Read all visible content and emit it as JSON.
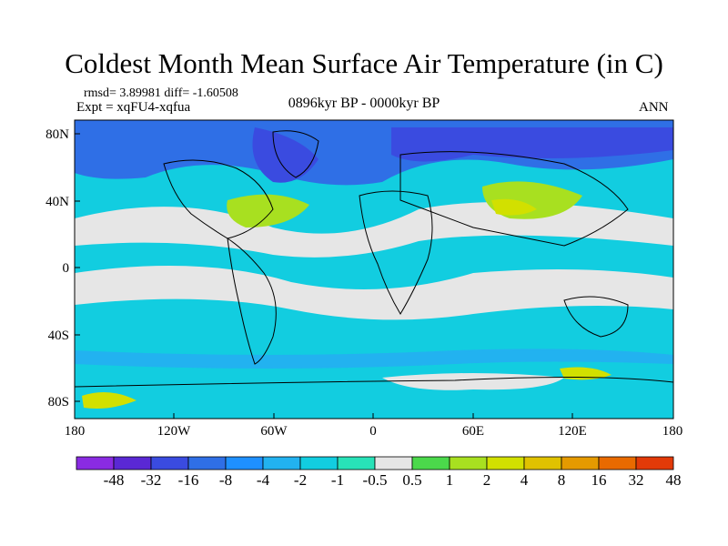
{
  "title": "Coldest Month Mean Surface Air Temperature (in C)",
  "stats": "rmsd= 3.89981 diff= -1.60508",
  "experiment": "Expt = xqFU4-xqfua",
  "period": "0896kyr BP - 0000kyr BP",
  "season": "ANN",
  "lat_labels": [
    "80N",
    "40N",
    "0",
    "40S",
    "80S"
  ],
  "lon_labels": [
    "180",
    "120W",
    "60W",
    "0",
    "60E",
    "120E",
    "180"
  ],
  "colorbar": {
    "labels": [
      "-48",
      "-32",
      "-16",
      "-8",
      "-4",
      "-2",
      "-1",
      "-0.5",
      "0.5",
      "1",
      "2",
      "4",
      "8",
      "16",
      "32",
      "48"
    ],
    "colors": [
      "#8a2be2",
      "#5a28d4",
      "#3a4be0",
      "#2f6fe6",
      "#1e90ff",
      "#22b2f0",
      "#12cde0",
      "#28e2b8",
      "#e6e6e6",
      "#4bd94b",
      "#a8e020",
      "#d2e000",
      "#e0c200",
      "#e59a00",
      "#e96a00",
      "#e23a08"
    ]
  },
  "colors": {
    "ocean_base": "#12cde0",
    "land_outline": "#000000"
  }
}
